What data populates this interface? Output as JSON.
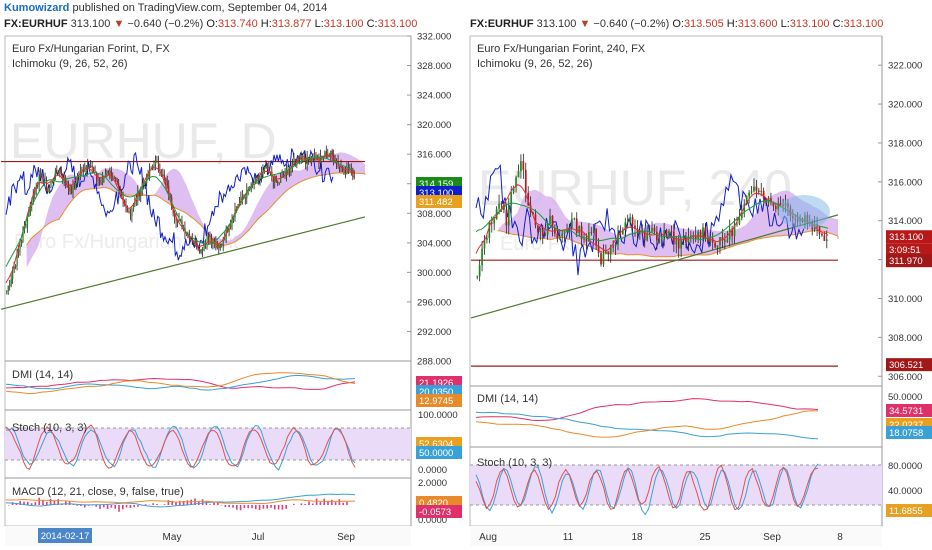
{
  "header": {
    "author": "Kumowizard",
    "published_text": "published on TradingView.com, September 04, 2014"
  },
  "colors": {
    "up": "#1a8a1a",
    "down": "#b81818",
    "tenkan": "#e03030",
    "kijun": "#1a9b3a",
    "chikou": "#1020c8",
    "cloud": "#d9b4ef",
    "senkou_b": "#e8902a",
    "dmi_plus": "#3aa0d8",
    "dmi_minus": "#e0306a",
    "adx": "#e88a2a",
    "stoch_k": "#3aa0d8",
    "stoch_d": "#e05050",
    "stoch_band": "#eadcf8",
    "hline": "#a01818",
    "trend": "#507a30",
    "macd_hist": "#e03a8a"
  },
  "charts": [
    {
      "quote": {
        "symbol": "FX:EURHUF",
        "last": "313.100",
        "arrow": "▼",
        "change": "−0.640 (−0.2%)",
        "o_label": "O:",
        "o": "313.740",
        "h_label": "H:",
        "h": "313.877",
        "l_label": "L:",
        "l": "313.100",
        "c_label": "C:",
        "c": "313.100"
      },
      "title": "Euro Fx/Hungarian Forint, D, FX",
      "study": "Ichimoku (9, 26, 52, 26)",
      "watermark": "EURHUF, D",
      "watermark_sub": "Euro Fx/Hungarian Forint",
      "price_axis": {
        "ticks": [
          "332.000",
          "328.000",
          "324.000",
          "320.000",
          "316.000",
          "312.000",
          "308.000",
          "304.000",
          "300.000",
          "296.000",
          "292.000",
          "288.000"
        ]
      },
      "price_labels": [
        {
          "text": "314.159",
          "bg": "#1a8a1a"
        },
        {
          "text": "313.100",
          "bg": "#1020c8"
        },
        {
          "text": "311.482",
          "bg": "#e8a020"
        }
      ],
      "dmi": {
        "label": "DMI (14, 14)",
        "values": [
          {
            "text": "21.1926",
            "bg": "#e0306a"
          },
          {
            "text": "20.0350",
            "bg": "#3aa0d8"
          },
          {
            "text": "12.9745",
            "bg": "#e88a2a"
          }
        ]
      },
      "stoch": {
        "label": "Stoch (10, 3, 3)",
        "ticks": [
          "100.0000",
          "0.0000"
        ],
        "values": [
          {
            "text": "52.6304",
            "bg": "#e8a020"
          },
          {
            "text": "50.0000",
            "bg": "#3aa0d8"
          }
        ]
      },
      "macd": {
        "label": "MACD (12, 21, close, 9, false, true)",
        "ticks": [
          "2.0000",
          "0.0000"
        ],
        "values": [
          {
            "text": "0.4820",
            "bg": "#e88a2a"
          },
          {
            "text": "-0.0573",
            "bg": "#e0306a"
          }
        ]
      },
      "time_axis": {
        "badge": "2014-02-17",
        "labels": [
          "May",
          "Jul",
          "Sep"
        ]
      },
      "chart_data": {
        "type": "candlestick",
        "symbol": "FX:EURHUF",
        "timeframe": "D",
        "ylim": [
          288,
          332
        ],
        "close_series_estimate": [
          297.5,
          300,
          303,
          306,
          309,
          312,
          313,
          311,
          313,
          314,
          312,
          311,
          313,
          314,
          315,
          313,
          312,
          314,
          313,
          311,
          309,
          308,
          310,
          312,
          313,
          315,
          314,
          312,
          309,
          307,
          306,
          305,
          304,
          303,
          305,
          304,
          303,
          305,
          307,
          309,
          310,
          311,
          312,
          313,
          314,
          313,
          312,
          313,
          314,
          315,
          316,
          315,
          316,
          315,
          316,
          316,
          315,
          314,
          314,
          313.1
        ],
        "horizontal_line": 315,
        "trendline": {
          "from": 295,
          "to": 307.5
        },
        "last_close": 313.1
      }
    },
    {
      "quote": {
        "symbol": "FX:EURHUF",
        "last": "313.100",
        "arrow": "▼",
        "change": "−0.640 (−0.2%)",
        "o_label": "O:",
        "o": "313.505",
        "h_label": "H:",
        "h": "313.600",
        "l_label": "L:",
        "l": "313.100",
        "c_label": "C:",
        "c": "313.100"
      },
      "title": "Euro Fx/Hungarian Forint, 240, FX",
      "study": "Ichimoku (9, 26, 52, 26)",
      "watermark": "EURHUF, 240",
      "watermark_sub": "Euro Fx/Hungarian Forint",
      "price_axis": {
        "ticks": [
          "322.000",
          "320.000",
          "318.000",
          "316.000",
          "314.000",
          "312.000",
          "310.000",
          "308.000",
          "306.000"
        ]
      },
      "price_labels": [
        {
          "text": "313.100",
          "bg": "#b81818"
        },
        {
          "text": "3:09:51",
          "bg": "#b81818"
        },
        {
          "text": "311.970",
          "bg": "#a01818"
        },
        {
          "text": "306.521",
          "bg": "#a01818"
        }
      ],
      "dmi": {
        "label": "DMI (14, 14)",
        "ticks": [
          "50.0000",
          "30.0000"
        ],
        "values": [
          {
            "text": "34.5731",
            "bg": "#e0306a"
          },
          {
            "text": "22.0237",
            "bg": "#e8a020"
          },
          {
            "text": "18.0758",
            "bg": "#3aa0d8"
          }
        ]
      },
      "stoch": {
        "label": "Stoch (10, 3, 3)",
        "ticks": [
          "80.0000",
          "40.0000"
        ],
        "values": [
          {
            "text": "11.6855",
            "bg": "#e8a020"
          }
        ]
      },
      "time_axis": {
        "labels": [
          "Aug",
          "11",
          "18",
          "25",
          "Sep",
          "8"
        ]
      },
      "chart_data": {
        "type": "candlestick",
        "symbol": "FX:EURHUF",
        "timeframe": "240",
        "ylim": [
          305.5,
          323.5
        ],
        "close_series_estimate": [
          311,
          313,
          314,
          315,
          314,
          316,
          317,
          315,
          314,
          313,
          314,
          313,
          313.5,
          314,
          313.5,
          313,
          313.5,
          312,
          312.5,
          313,
          313.5,
          314,
          313.5,
          313,
          313.5,
          313,
          313.5,
          313,
          312.8,
          313,
          313.2,
          313.5,
          313,
          312.8,
          313,
          313.5,
          314,
          315,
          316,
          315.5,
          315,
          314.8,
          315,
          314.5,
          314,
          314.2,
          313.8,
          313.5,
          313.1
        ],
        "horizontal_lines": [
          311.97,
          306.521
        ],
        "trendline": {
          "from": 309,
          "to": 314.3
        },
        "last_close": 313.1
      }
    }
  ]
}
